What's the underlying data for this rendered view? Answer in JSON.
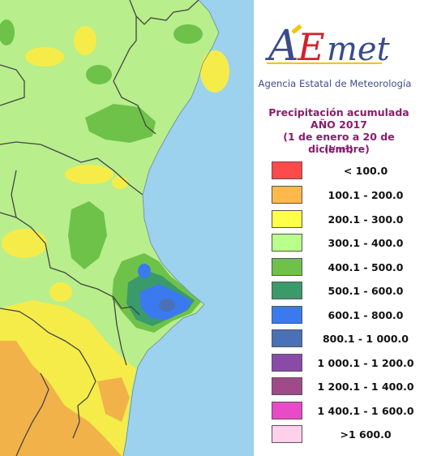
{
  "logo": {
    "text": "AEmet",
    "agency": "Agencia Estatal de Meteorología"
  },
  "title": {
    "line1": "Precipitación acumulada",
    "line2": "AÑO 2017",
    "line3": "(1 de enero a 20 de diciembre)",
    "unit": "(l/m²)"
  },
  "legend": [
    {
      "label": "< 100.0",
      "color": "#ff4a4a"
    },
    {
      "label": "100.1 - 200.0",
      "color": "#ffb84a"
    },
    {
      "label": "200.1 - 300.0",
      "color": "#ffff4a"
    },
    {
      "label": "300.1 - 400.0",
      "color": "#b8ff8c"
    },
    {
      "label": "400.1 - 500.0",
      "color": "#6ec24a"
    },
    {
      "label": "500.1 - 600.0",
      "color": "#3a9a6a"
    },
    {
      "label": "600.1 - 800.0",
      "color": "#3a7aee"
    },
    {
      "label": "800.1 - 1 000.0",
      "color": "#4a70b8"
    },
    {
      "label": "1 000.1 - 1 200.0",
      "color": "#8a4aa8"
    },
    {
      "label": "1 200.1 - 1 400.0",
      "color": "#a04a8a"
    },
    {
      "label": "1 400.1 - 1 600.0",
      "color": "#e84ac8"
    },
    {
      "label": ">1 600.0",
      "color": "#ffd0ec"
    }
  ],
  "colors": {
    "sea": "#9cd2ee",
    "border": "#444444",
    "logo_blue": "#3a4a8c",
    "logo_red": "#d4202a",
    "logo_yellow": "#f5c400",
    "title": "#8b1c6e"
  }
}
